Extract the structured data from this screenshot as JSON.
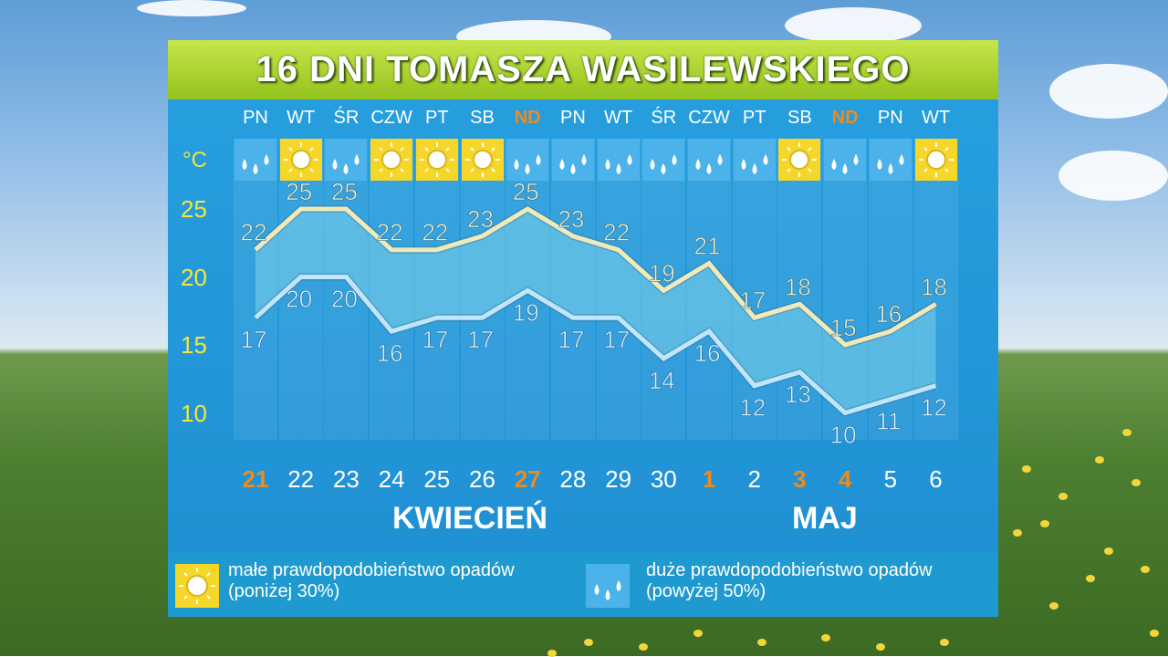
{
  "title": "16 DNI TOMASZA WASILEWSKIEGO",
  "colors": {
    "sun_bg": "#f5d629",
    "rain_bg": "#4bb3ea",
    "max_line": "#f1e9b8",
    "min_line": "#bfe6fb",
    "sunday": "#f08a1c",
    "axis_label": "#f3e63c"
  },
  "chart_data": {
    "type": "line",
    "unit": "°C",
    "y_ticks": [
      25,
      20,
      15,
      10
    ],
    "ylim": [
      10,
      25
    ],
    "days": [
      {
        "name": "PN",
        "num": "21",
        "icon": "rain",
        "sunday": true
      },
      {
        "name": "WT",
        "num": "22",
        "icon": "sun",
        "sunday": false
      },
      {
        "name": "ŚR",
        "num": "23",
        "icon": "rain",
        "sunday": false
      },
      {
        "name": "CZW",
        "num": "24",
        "icon": "sun",
        "sunday": false
      },
      {
        "name": "PT",
        "num": "25",
        "icon": "sun",
        "sunday": false
      },
      {
        "name": "SB",
        "num": "26",
        "icon": "sun",
        "sunday": false
      },
      {
        "name": "ND",
        "num": "27",
        "icon": "rain",
        "sunday": true
      },
      {
        "name": "PN",
        "num": "28",
        "icon": "rain",
        "sunday": false
      },
      {
        "name": "WT",
        "num": "29",
        "icon": "rain",
        "sunday": false
      },
      {
        "name": "ŚR",
        "num": "30",
        "icon": "rain",
        "sunday": false
      },
      {
        "name": "CZW",
        "num": "1",
        "icon": "rain",
        "sunday": true
      },
      {
        "name": "PT",
        "num": "2",
        "icon": "rain",
        "sunday": false
      },
      {
        "name": "SB",
        "num": "3",
        "icon": "sun",
        "sunday": true
      },
      {
        "name": "ND",
        "num": "4",
        "icon": "rain",
        "sunday": true
      },
      {
        "name": "PN",
        "num": "5",
        "icon": "rain",
        "sunday": false
      },
      {
        "name": "WT",
        "num": "6",
        "icon": "sun",
        "sunday": false
      }
    ],
    "series": [
      {
        "values": [
          22,
          25,
          25,
          22,
          22,
          23,
          25,
          23,
          22,
          19,
          21,
          17,
          18,
          15,
          16,
          18
        ]
      },
      {
        "values": [
          17,
          20,
          20,
          16,
          17,
          17,
          19,
          17,
          17,
          14,
          16,
          12,
          13,
          10,
          11,
          12
        ]
      }
    ],
    "months": [
      "KWIECIEŃ",
      "MAJ"
    ]
  },
  "legend": {
    "sun_text": "małe prawdopodobieństwo opadów (poniżej 30%)",
    "rain_text": "duże prawdopodobieństwo opadów (powyżej 50%)"
  }
}
